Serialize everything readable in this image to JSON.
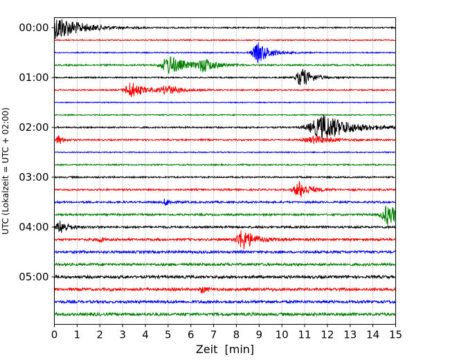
{
  "chart_data": {
    "type": "line",
    "subtype": "helicorder",
    "title": "",
    "xlabel": "Zeit  [min]",
    "ylabel": "UTC (Lokalzeit = UTC + 02:00)",
    "xlim": [
      0,
      15
    ],
    "xticks": [
      "0",
      "1",
      "2",
      "3",
      "4",
      "5",
      "6",
      "7",
      "8",
      "9",
      "10",
      "11",
      "12",
      "13",
      "14",
      "15"
    ],
    "yticks": [
      "00:00",
      "01:00",
      "02:00",
      "03:00",
      "04:00",
      "05:00"
    ],
    "minutes_per_line": 15,
    "line_count": 24,
    "colors": [
      "#000000",
      "#ff0000",
      "#0000ff",
      "#008000"
    ],
    "grid": "vertical dotted",
    "base_noise": [
      0.12,
      0.1,
      0.1,
      0.14,
      0.12,
      0.12,
      0.08,
      0.1,
      0.14,
      0.14,
      0.1,
      0.12,
      0.14,
      0.16,
      0.18,
      0.18,
      0.2,
      0.22,
      0.24,
      0.24,
      0.26,
      0.26,
      0.26,
      0.28
    ],
    "events": [
      {
        "line": 0,
        "minute": 0.2,
        "amplitude": 1.9,
        "duration": 2.0
      },
      {
        "line": 2,
        "minute": 9.0,
        "amplitude": 1.6,
        "duration": 1.0
      },
      {
        "line": 3,
        "minute": 5.1,
        "amplitude": 1.5,
        "duration": 1.3
      },
      {
        "line": 3,
        "minute": 6.6,
        "amplitude": 1.0,
        "duration": 1.0
      },
      {
        "line": 4,
        "minute": 10.9,
        "amplitude": 1.5,
        "duration": 0.9
      },
      {
        "line": 5,
        "minute": 3.4,
        "amplitude": 1.3,
        "duration": 1.0
      },
      {
        "line": 5,
        "minute": 5.0,
        "amplitude": 0.7,
        "duration": 1.2
      },
      {
        "line": 8,
        "minute": 11.9,
        "amplitude": 2.0,
        "duration": 2.2
      },
      {
        "line": 9,
        "minute": 0.2,
        "amplitude": 0.8,
        "duration": 0.4
      },
      {
        "line": 9,
        "minute": 11.5,
        "amplitude": 0.6,
        "duration": 1.5
      },
      {
        "line": 13,
        "minute": 10.8,
        "amplitude": 1.3,
        "duration": 0.9
      },
      {
        "line": 14,
        "minute": 4.9,
        "amplitude": 0.6,
        "duration": 0.4
      },
      {
        "line": 15,
        "minute": 14.7,
        "amplitude": 1.7,
        "duration": 1.0
      },
      {
        "line": 16,
        "minute": 0.3,
        "amplitude": 1.0,
        "duration": 0.7
      },
      {
        "line": 17,
        "minute": 8.3,
        "amplitude": 1.6,
        "duration": 1.0
      },
      {
        "line": 17,
        "minute": 2.0,
        "amplitude": 0.5,
        "duration": 0.3
      },
      {
        "line": 21,
        "minute": 6.5,
        "amplitude": 0.6,
        "duration": 0.3
      }
    ]
  }
}
